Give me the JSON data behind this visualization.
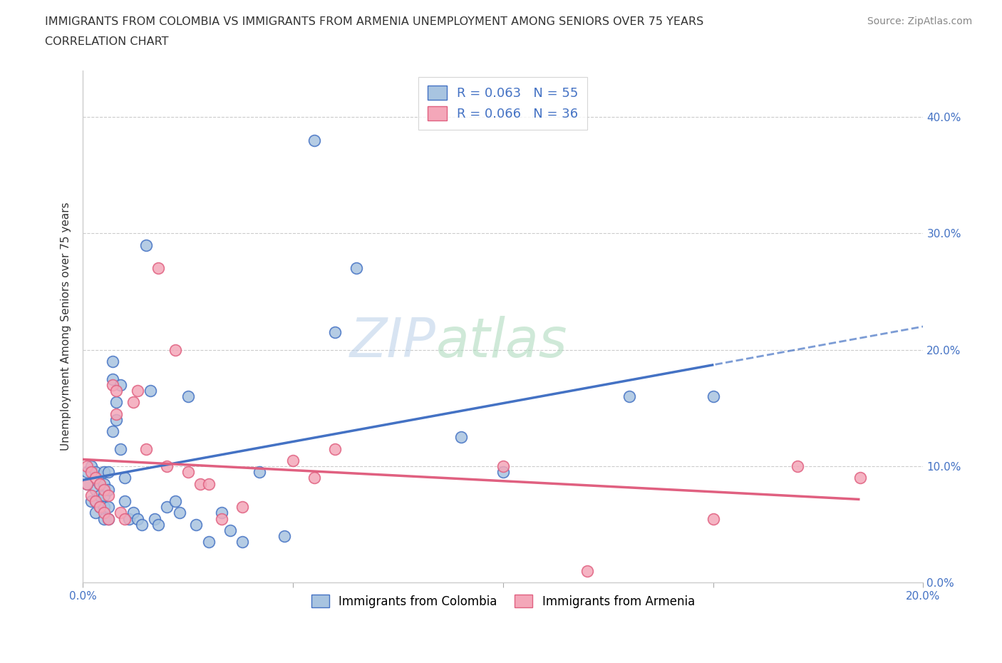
{
  "title_line1": "IMMIGRANTS FROM COLOMBIA VS IMMIGRANTS FROM ARMENIA UNEMPLOYMENT AMONG SENIORS OVER 75 YEARS",
  "title_line2": "CORRELATION CHART",
  "source_text": "Source: ZipAtlas.com",
  "ylabel": "Unemployment Among Seniors over 75 years",
  "xlim": [
    0.0,
    0.2
  ],
  "ylim": [
    0.0,
    0.44
  ],
  "xticks": [
    0.0,
    0.05,
    0.1,
    0.15,
    0.2
  ],
  "yticks": [
    0.0,
    0.1,
    0.2,
    0.3,
    0.4
  ],
  "colombia_color": "#a8c4e0",
  "armenia_color": "#f4a7b9",
  "colombia_line_color": "#4472c4",
  "armenia_line_color": "#e06080",
  "grid_color": "#cccccc",
  "colombia_x": [
    0.001,
    0.001,
    0.002,
    0.002,
    0.003,
    0.003,
    0.003,
    0.003,
    0.004,
    0.004,
    0.004,
    0.005,
    0.005,
    0.005,
    0.005,
    0.005,
    0.006,
    0.006,
    0.006,
    0.006,
    0.007,
    0.007,
    0.007,
    0.008,
    0.008,
    0.009,
    0.009,
    0.01,
    0.01,
    0.011,
    0.012,
    0.013,
    0.014,
    0.015,
    0.016,
    0.017,
    0.018,
    0.02,
    0.022,
    0.023,
    0.025,
    0.027,
    0.03,
    0.033,
    0.035,
    0.038,
    0.042,
    0.048,
    0.055,
    0.06,
    0.065,
    0.09,
    0.1,
    0.13,
    0.15
  ],
  "colombia_y": [
    0.095,
    0.085,
    0.1,
    0.07,
    0.095,
    0.08,
    0.07,
    0.06,
    0.085,
    0.075,
    0.065,
    0.095,
    0.085,
    0.075,
    0.065,
    0.055,
    0.095,
    0.08,
    0.065,
    0.055,
    0.19,
    0.175,
    0.13,
    0.155,
    0.14,
    0.17,
    0.115,
    0.09,
    0.07,
    0.055,
    0.06,
    0.055,
    0.05,
    0.29,
    0.165,
    0.055,
    0.05,
    0.065,
    0.07,
    0.06,
    0.16,
    0.05,
    0.035,
    0.06,
    0.045,
    0.035,
    0.095,
    0.04,
    0.38,
    0.215,
    0.27,
    0.125,
    0.095,
    0.16,
    0.16
  ],
  "armenia_x": [
    0.001,
    0.001,
    0.002,
    0.002,
    0.003,
    0.003,
    0.004,
    0.004,
    0.005,
    0.005,
    0.006,
    0.006,
    0.007,
    0.008,
    0.008,
    0.009,
    0.01,
    0.012,
    0.013,
    0.015,
    0.018,
    0.02,
    0.022,
    0.025,
    0.028,
    0.03,
    0.033,
    0.038,
    0.05,
    0.055,
    0.06,
    0.1,
    0.12,
    0.15,
    0.17,
    0.185
  ],
  "armenia_y": [
    0.1,
    0.085,
    0.095,
    0.075,
    0.09,
    0.07,
    0.085,
    0.065,
    0.08,
    0.06,
    0.075,
    0.055,
    0.17,
    0.165,
    0.145,
    0.06,
    0.055,
    0.155,
    0.165,
    0.115,
    0.27,
    0.1,
    0.2,
    0.095,
    0.085,
    0.085,
    0.055,
    0.065,
    0.105,
    0.09,
    0.115,
    0.1,
    0.01,
    0.055,
    0.1,
    0.09
  ]
}
